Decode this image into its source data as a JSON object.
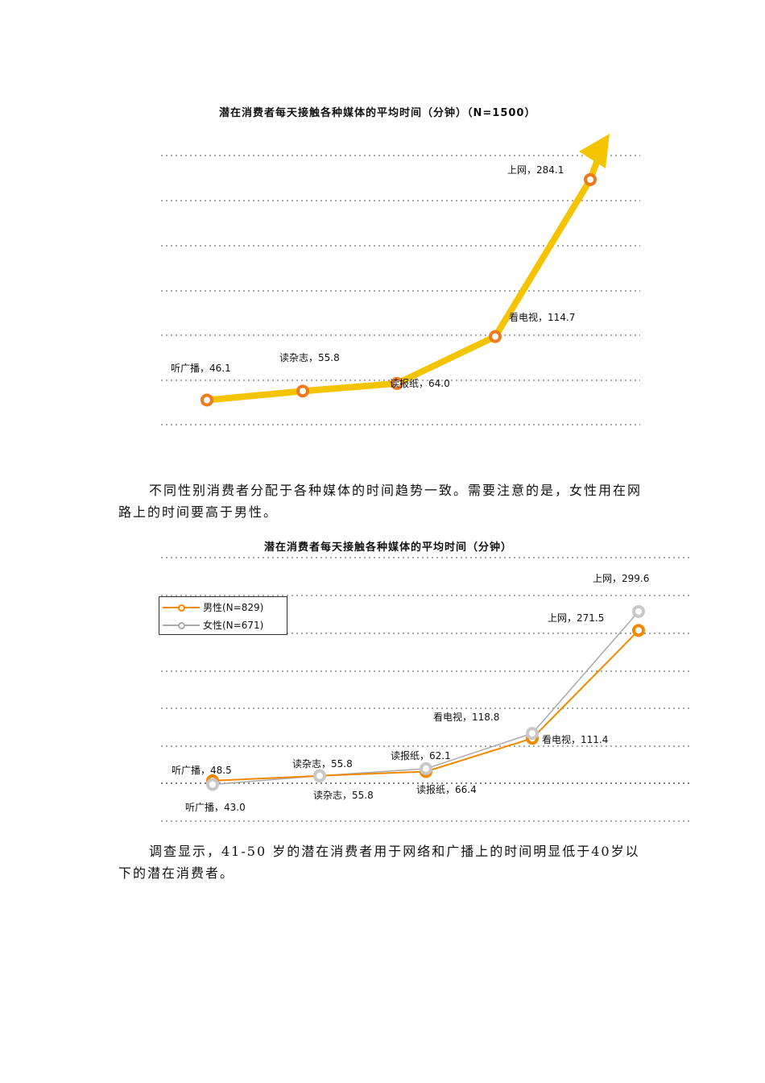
{
  "chart1": {
    "title": "潜在消费者每天接触各种媒体的平均时间（分钟）（N=1500）",
    "colors": {
      "line": "#F5C400",
      "marker": "#EE7A1E",
      "grid": "#555555"
    },
    "labels": [
      {
        "text": "听广播，46.1"
      },
      {
        "text": "读杂志，55.8"
      },
      {
        "text": "读报纸，64.0"
      },
      {
        "text": "看电视，114.7"
      },
      {
        "text": "上网，284.1"
      }
    ]
  },
  "chart1_data": {
    "type": "line",
    "categories": [
      "听广播",
      "读杂志",
      "读报纸",
      "看电视",
      "上网"
    ],
    "values": [
      46.1,
      55.8,
      64.0,
      114.7,
      284.1
    ],
    "title": "潜在消费者每天接触各种媒体的平均时间（分钟）（N=1500）"
  },
  "paragraph1": "不同性别消费者分配于各种媒体的时间趋势一致。需要注意的是，女性用在网路上的时间要高于男性。",
  "chart2": {
    "title": "潜在消费者每天接触各种媒体的平均时间（分钟）",
    "legend": {
      "male": "男性(N=829)",
      "female": "女性(N=671)"
    },
    "colors": {
      "male": "#F08A00",
      "female": "#AAAAAA",
      "grid": "#555555"
    },
    "male_labels": [
      "听广播，48.5",
      "读杂志，55.8",
      "读报纸，62.1",
      "看电视，111.4",
      "上网，271.5"
    ],
    "female_labels": [
      "听广播，43.0",
      "读杂志，55.8",
      "读报纸，66.4",
      "看电视，118.8",
      "上网，299.6"
    ]
  },
  "chart_data": {
    "type": "line",
    "title": "潜在消费者每天接触各种媒体的平均时间（分钟）",
    "categories": [
      "听广播",
      "读杂志",
      "读报纸",
      "看电视",
      "上网"
    ],
    "series": [
      {
        "name": "男性(N=829)",
        "values": [
          48.5,
          55.8,
          62.1,
          111.4,
          271.5
        ]
      },
      {
        "name": "女性(N=671)",
        "values": [
          43.0,
          55.8,
          66.4,
          118.8,
          299.6
        ]
      }
    ]
  },
  "paragraph2": "调查显示，41-50 岁的潜在消费者用于网络和广播上的时间明显低于40岁以下的潜在消费者。"
}
